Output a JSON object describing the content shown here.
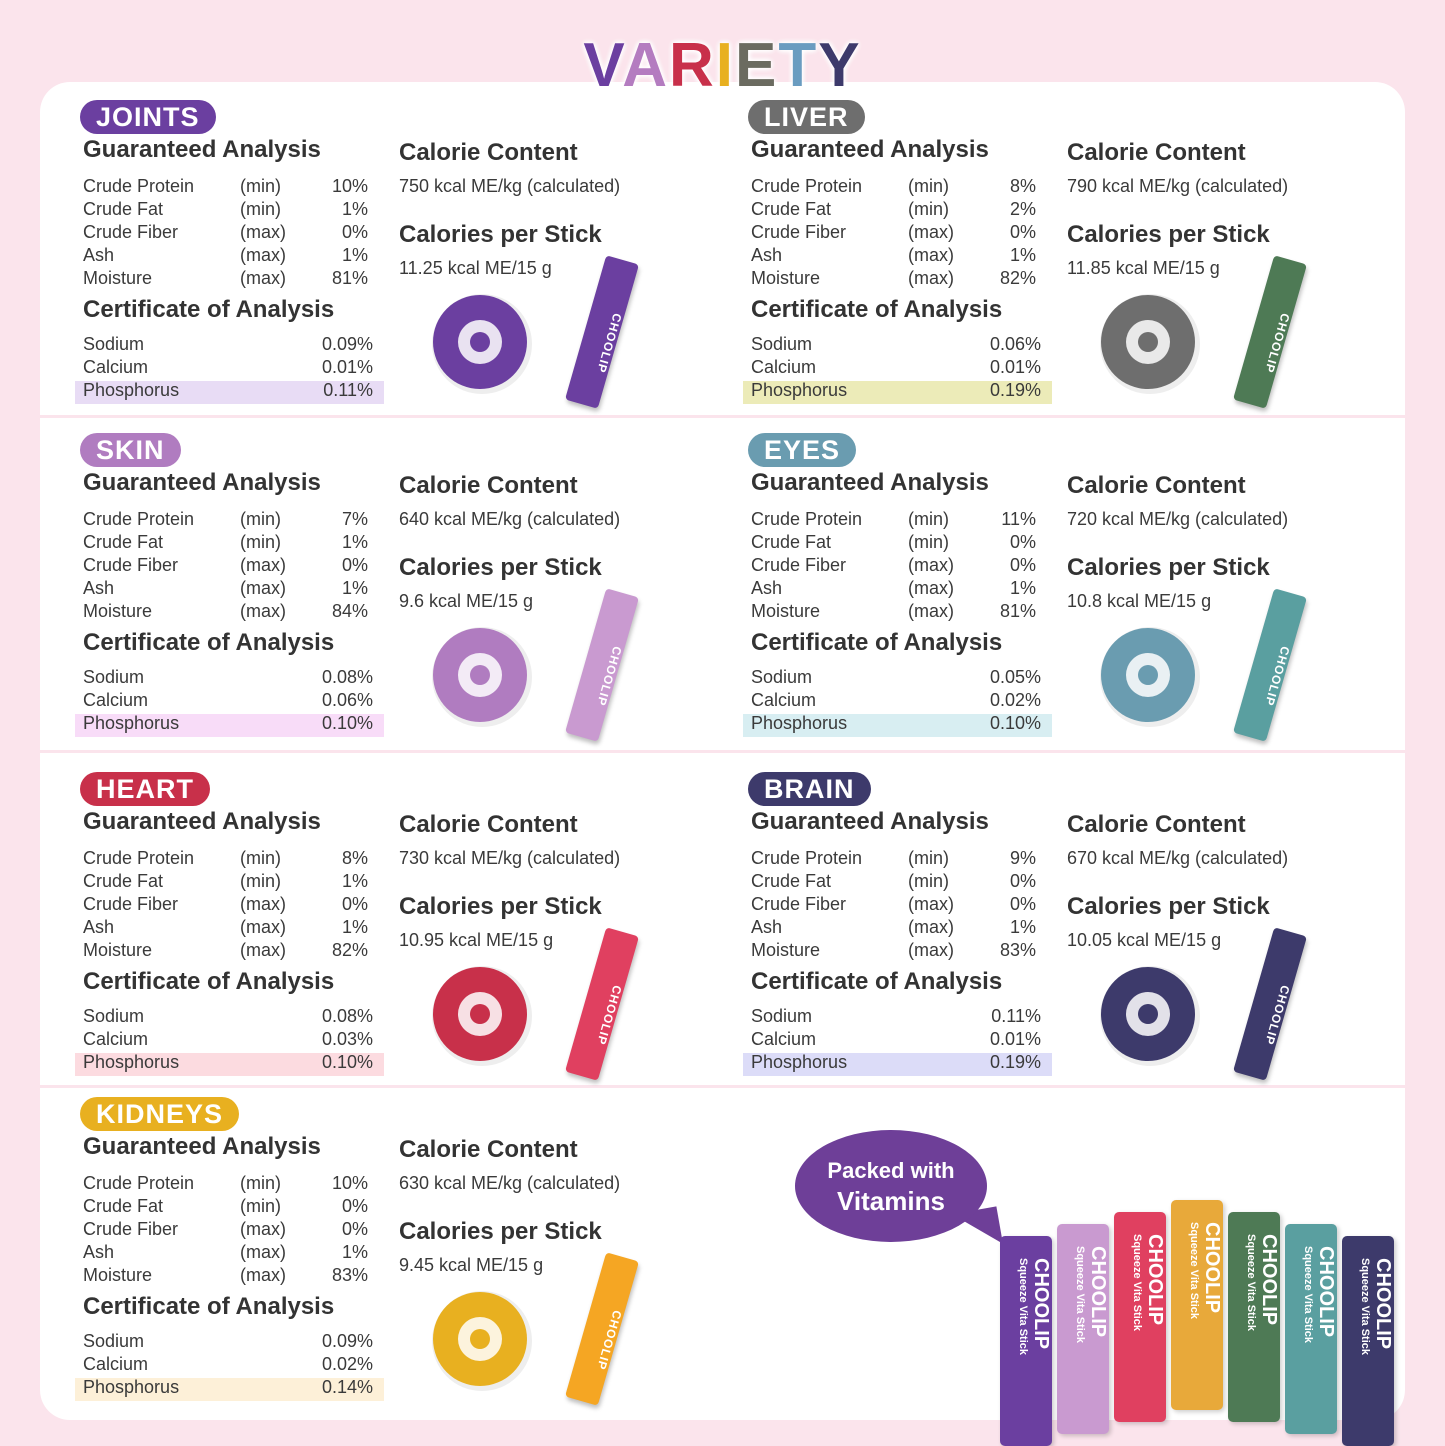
{
  "title": {
    "letters": [
      "V",
      "A",
      "R",
      "I",
      "E",
      "T",
      "Y"
    ],
    "colors": [
      "#6b3fa0",
      "#b47cc0",
      "#c8304a",
      "#e8b020",
      "#6b6b60",
      "#6a9cc0",
      "#3d3a6b"
    ]
  },
  "labels": {
    "guaranteed": "Guaranteed Analysis",
    "certificate": "Certificate of Analysis",
    "calorie_content": "Calorie Content",
    "calories_per_stick": "Calories per Stick",
    "brand": "CHOOLIP",
    "tagline": "Squeeze Vita Stick"
  },
  "nutrients": [
    {
      "name": "Crude Protein",
      "qual": "(min)"
    },
    {
      "name": "Crude Fat",
      "qual": "(min)"
    },
    {
      "name": "Crude Fiber",
      "qual": "(max)"
    },
    {
      "name": "Ash",
      "qual": "(max)"
    },
    {
      "name": "Moisture",
      "qual": "(max)"
    }
  ],
  "minerals": [
    "Sodium",
    "Calcium",
    "Phosphorus"
  ],
  "products": [
    {
      "name": "JOINTS",
      "color": "#6b3fa0",
      "highlight": "#e8dcf5",
      "stick": "#6b3fa0",
      "icon": "joint-icon",
      "guaranteed": [
        "10%",
        "1%",
        "0%",
        "1%",
        "81%"
      ],
      "certificate": [
        "0.09%",
        "0.01%",
        "0.11%"
      ],
      "calorie_content": "750 kcal ME/kg (calculated)",
      "per_stick": "11.25 kcal ME/15 g"
    },
    {
      "name": "LIVER",
      "color": "#6e6e6e",
      "highlight": "#ecebb8",
      "stick": "#4e7a55",
      "icon": "liver-icon",
      "guaranteed": [
        "8%",
        "2%",
        "0%",
        "1%",
        "82%"
      ],
      "certificate": [
        "0.06%",
        "0.01%",
        "0.19%"
      ],
      "calorie_content": "790 kcal ME/kg (calculated)",
      "per_stick": "11.85 kcal ME/15 g"
    },
    {
      "name": "SKIN",
      "color": "#b07cc0",
      "highlight": "#f8dcf8",
      "stick": "#c99ad0",
      "icon": "skin-drop-icon",
      "guaranteed": [
        "7%",
        "1%",
        "0%",
        "1%",
        "84%"
      ],
      "certificate": [
        "0.08%",
        "0.06%",
        "0.10%"
      ],
      "calorie_content": "640 kcal ME/kg (calculated)",
      "per_stick": "9.6 kcal ME/15 g"
    },
    {
      "name": "EYES",
      "color": "#6a9cb0",
      "highlight": "#d8eef2",
      "stick": "#5a9fa0",
      "icon": "eye-icon",
      "guaranteed": [
        "11%",
        "0%",
        "0%",
        "1%",
        "81%"
      ],
      "certificate": [
        "0.05%",
        "0.02%",
        "0.10%"
      ],
      "calorie_content": "720 kcal ME/kg (calculated)",
      "per_stick": "10.8 kcal ME/15 g"
    },
    {
      "name": "HEART",
      "color": "#c8304a",
      "highlight": "#fcdbe0",
      "stick": "#e04060",
      "icon": "heart-icon",
      "guaranteed": [
        "8%",
        "1%",
        "0%",
        "1%",
        "82%"
      ],
      "certificate": [
        "0.08%",
        "0.03%",
        "0.10%"
      ],
      "calorie_content": "730 kcal ME/kg (calculated)",
      "per_stick": "10.95 kcal ME/15 g"
    },
    {
      "name": "BRAIN",
      "color": "#3d3a6b",
      "highlight": "#dcdcf8",
      "stick": "#3d3a6b",
      "icon": "brain-icon",
      "guaranteed": [
        "9%",
        "0%",
        "0%",
        "1%",
        "83%"
      ],
      "certificate": [
        "0.11%",
        "0.01%",
        "0.19%"
      ],
      "calorie_content": "670 kcal ME/kg (calculated)",
      "per_stick": "10.05 kcal ME/15 g"
    },
    {
      "name": "KIDNEYS",
      "color": "#e8b020",
      "highlight": "#fdf0d8",
      "stick": "#f5a623",
      "icon": "kidney-icon",
      "guaranteed": [
        "10%",
        "0%",
        "0%",
        "1%",
        "83%"
      ],
      "certificate": [
        "0.09%",
        "0.02%",
        "0.14%"
      ],
      "calorie_content": "630 kcal ME/kg (calculated)",
      "per_stick": "9.45 kcal ME/15 g"
    }
  ],
  "promo": {
    "line1": "Packed with",
    "line2": "Vitamins",
    "fan_colors": [
      "#6b3fa0",
      "#c99ad0",
      "#e04060",
      "#e8a93a",
      "#4e7a55",
      "#5a9fa0",
      "#3d3a6b"
    ]
  }
}
